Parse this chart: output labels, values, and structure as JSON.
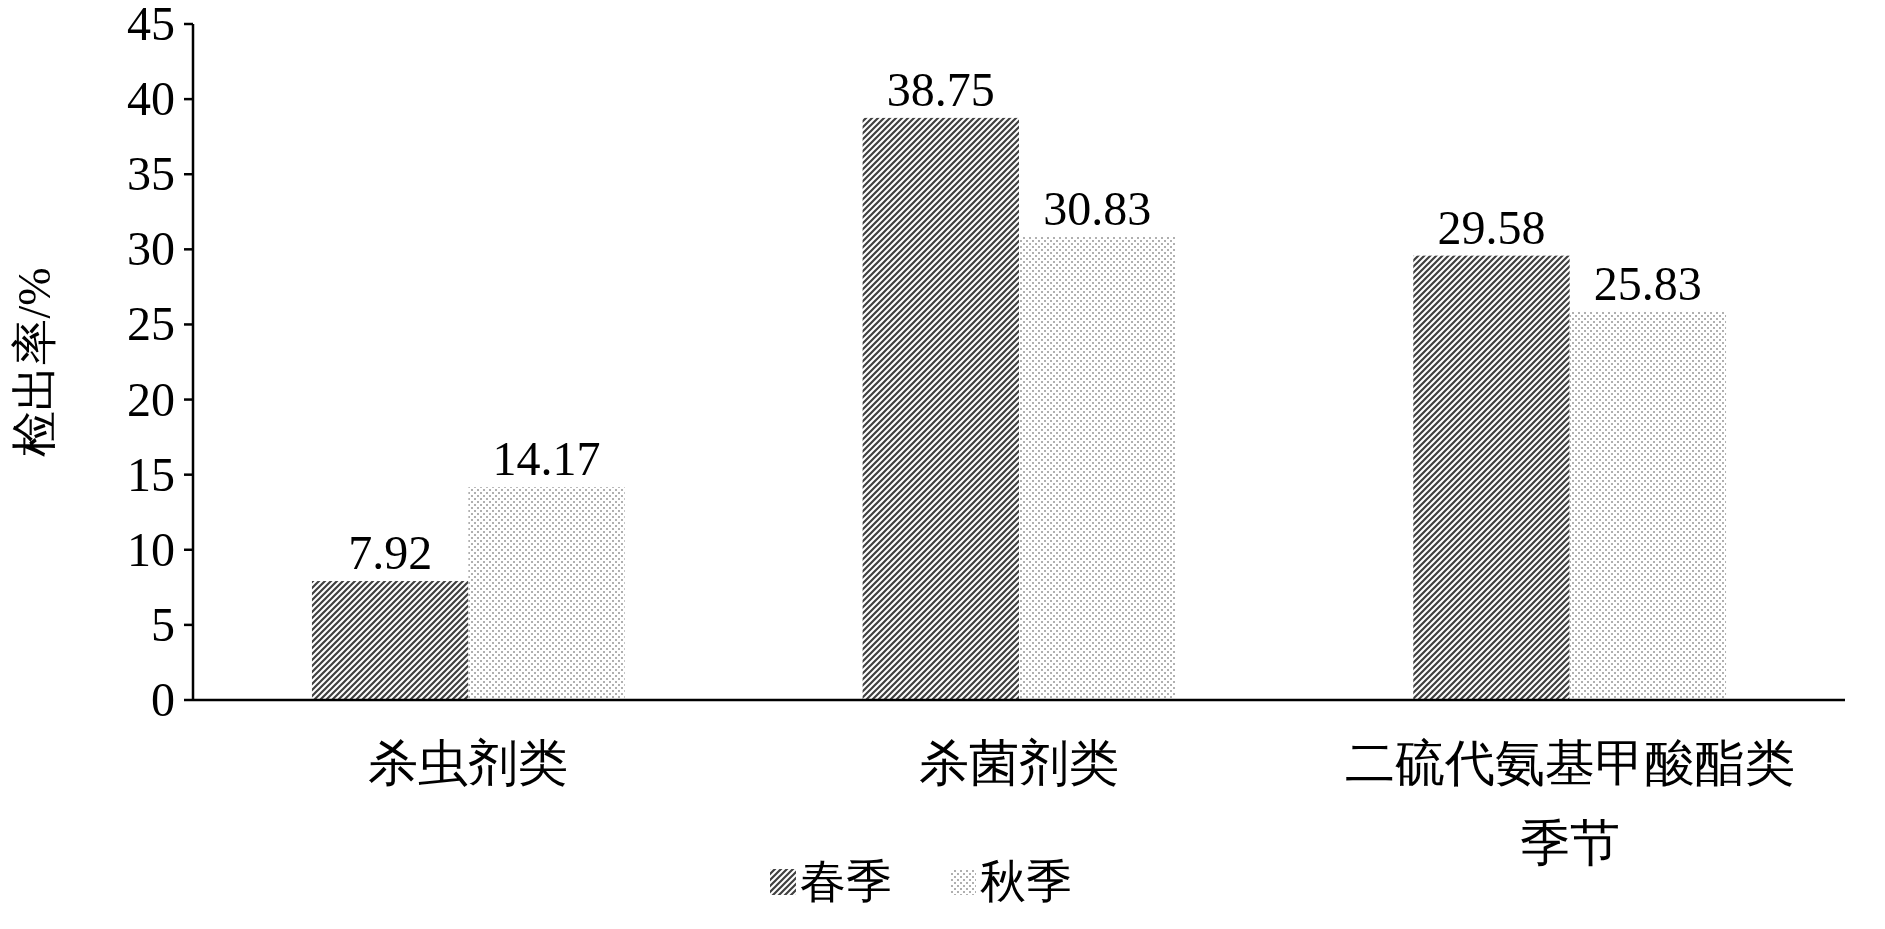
{
  "chart_data": {
    "type": "bar",
    "ylabel": "检出率/%",
    "xlabel": "季节",
    "categories": [
      "杀虫剂类",
      "杀菌剂类",
      "二硫代氨基甲酸酯类"
    ],
    "series": [
      {
        "name": "春季",
        "color": "#404040",
        "values": [
          7.92,
          38.75,
          29.58
        ]
      },
      {
        "name": "秋季",
        "color": "#b0b0b0",
        "values": [
          14.17,
          30.83,
          25.83
        ]
      }
    ],
    "ylim": [
      0,
      45
    ],
    "yticks": [
      0,
      5,
      10,
      15,
      20,
      25,
      30,
      35,
      40,
      45
    ],
    "data_labels": true,
    "grid": false,
    "legend": "bottom"
  }
}
